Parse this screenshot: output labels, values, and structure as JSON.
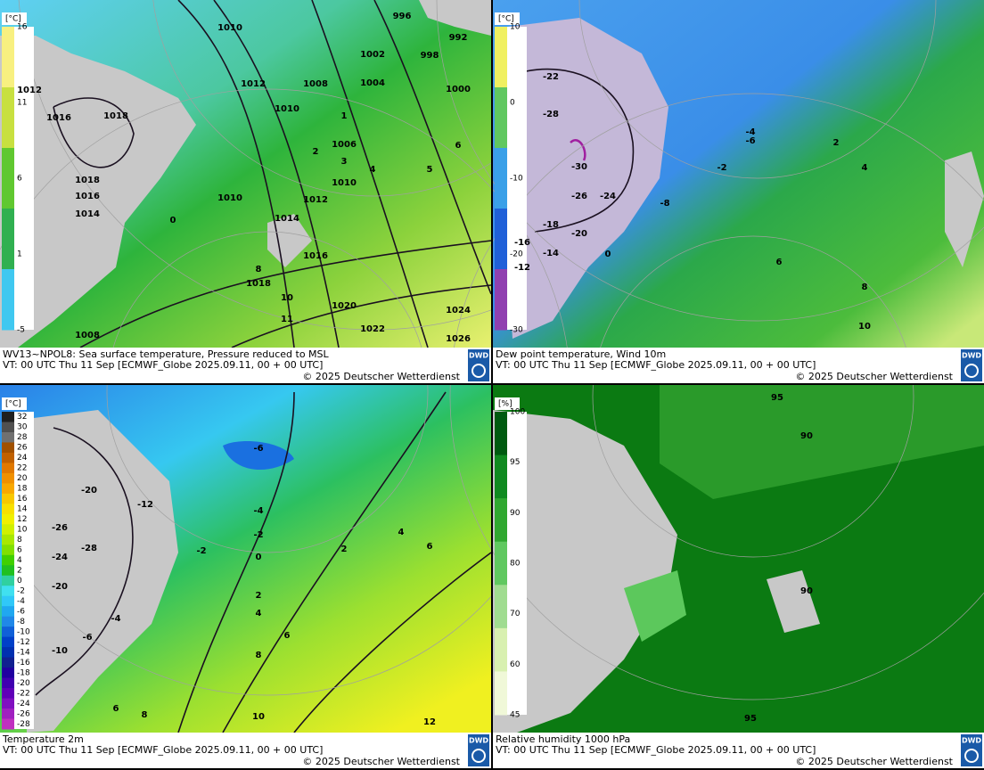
{
  "panels": [
    {
      "caption": {
        "line1": "WV13~NPOL8: Sea surface temperature,  Pressure reduced to MSL",
        "line2": "VT: 00 UTC Thu  11 Sep [ECMWF_Globe 2025.09.11, 00 + 00 UTC]",
        "copyright": "© 2025 Deutscher Wetterdienst"
      },
      "logo": "DWD",
      "legend": {
        "unit": "[°C]",
        "labels": [
          "16",
          "11",
          "6",
          "1",
          "-5"
        ]
      },
      "contour_labels": [
        "1010",
        "996",
        "992",
        "1002",
        "998",
        "1012",
        "1008",
        "1004",
        "1000",
        "1012",
        "1016",
        "1018",
        "1010",
        "1006",
        "1018",
        "1016",
        "1014",
        "1010",
        "1012",
        "1014",
        "1010",
        "1016",
        "1018",
        "1020",
        "1022",
        "1024",
        "1026",
        "1008",
        "0",
        "1",
        "2",
        "3",
        "4",
        "5",
        "6",
        "8",
        "10",
        "11"
      ]
    },
    {
      "caption": {
        "line1": "Dew point temperature, Wind 10m",
        "line2": "VT: 00 UTC Thu  11 Sep [ECMWF_Globe 2025.09.11,  00 + 00 UTC]",
        "copyright": "© 2025 Deutscher Wetterdienst"
      },
      "logo": "DWD",
      "legend": {
        "unit": "[°C]",
        "labels": [
          "10",
          "0",
          "-10",
          "-20",
          "-30"
        ]
      },
      "contour_labels": [
        "-30",
        "-26",
        "-24",
        "-28",
        "-22",
        "-20",
        "-18",
        "-14",
        "-16",
        "-12",
        "-8",
        "-6",
        "-4",
        "-2",
        "0",
        "2",
        "4",
        "6",
        "8",
        "10"
      ]
    },
    {
      "caption": {
        "line1": "Temperature 2m",
        "line2": "VT: 00 UTC Thu  11 Sep [ECMWF_Globe 2025.09.11, 00 + 00 UTC]",
        "copyright": "© 2025 Deutscher Wetterdienst"
      },
      "logo": "DWD",
      "legend": {
        "unit": "[°C]",
        "labels": [
          "32",
          "30",
          "28",
          "26",
          "24",
          "22",
          "20",
          "18",
          "16",
          "14",
          "12",
          "10",
          "8",
          "6",
          "4",
          "2",
          "0",
          "-2",
          "-4",
          "-6",
          "-8",
          "-10",
          "-12",
          "-14",
          "-16",
          "-18",
          "-20",
          "-22",
          "-24",
          "-26",
          "-28"
        ]
      },
      "contour_labels": [
        "-20",
        "-26",
        "-24",
        "-28",
        "-20",
        "-12",
        "-6",
        "-4",
        "-2",
        "0",
        "2",
        "4",
        "6",
        "2",
        "4",
        "6",
        "8",
        "10",
        "12",
        "6",
        "8",
        "-2",
        "-4",
        "-6",
        "-10"
      ]
    },
    {
      "caption": {
        "line1": "Relative humidity 1000 hPa",
        "line2": "VT: 00 UTC Thu  11 Sep [ECMWF_Globe 2025.09.11,  00 + 00 UTC]",
        "copyright": "© 2025 Deutscher Wetterdienst"
      },
      "logo": "DWD",
      "legend": {
        "unit": "[%]",
        "labels": [
          "100",
          "95",
          "90",
          "80",
          "70",
          "60",
          "45"
        ]
      },
      "contour_labels": [
        "95",
        "90",
        "95",
        "90"
      ]
    }
  ]
}
